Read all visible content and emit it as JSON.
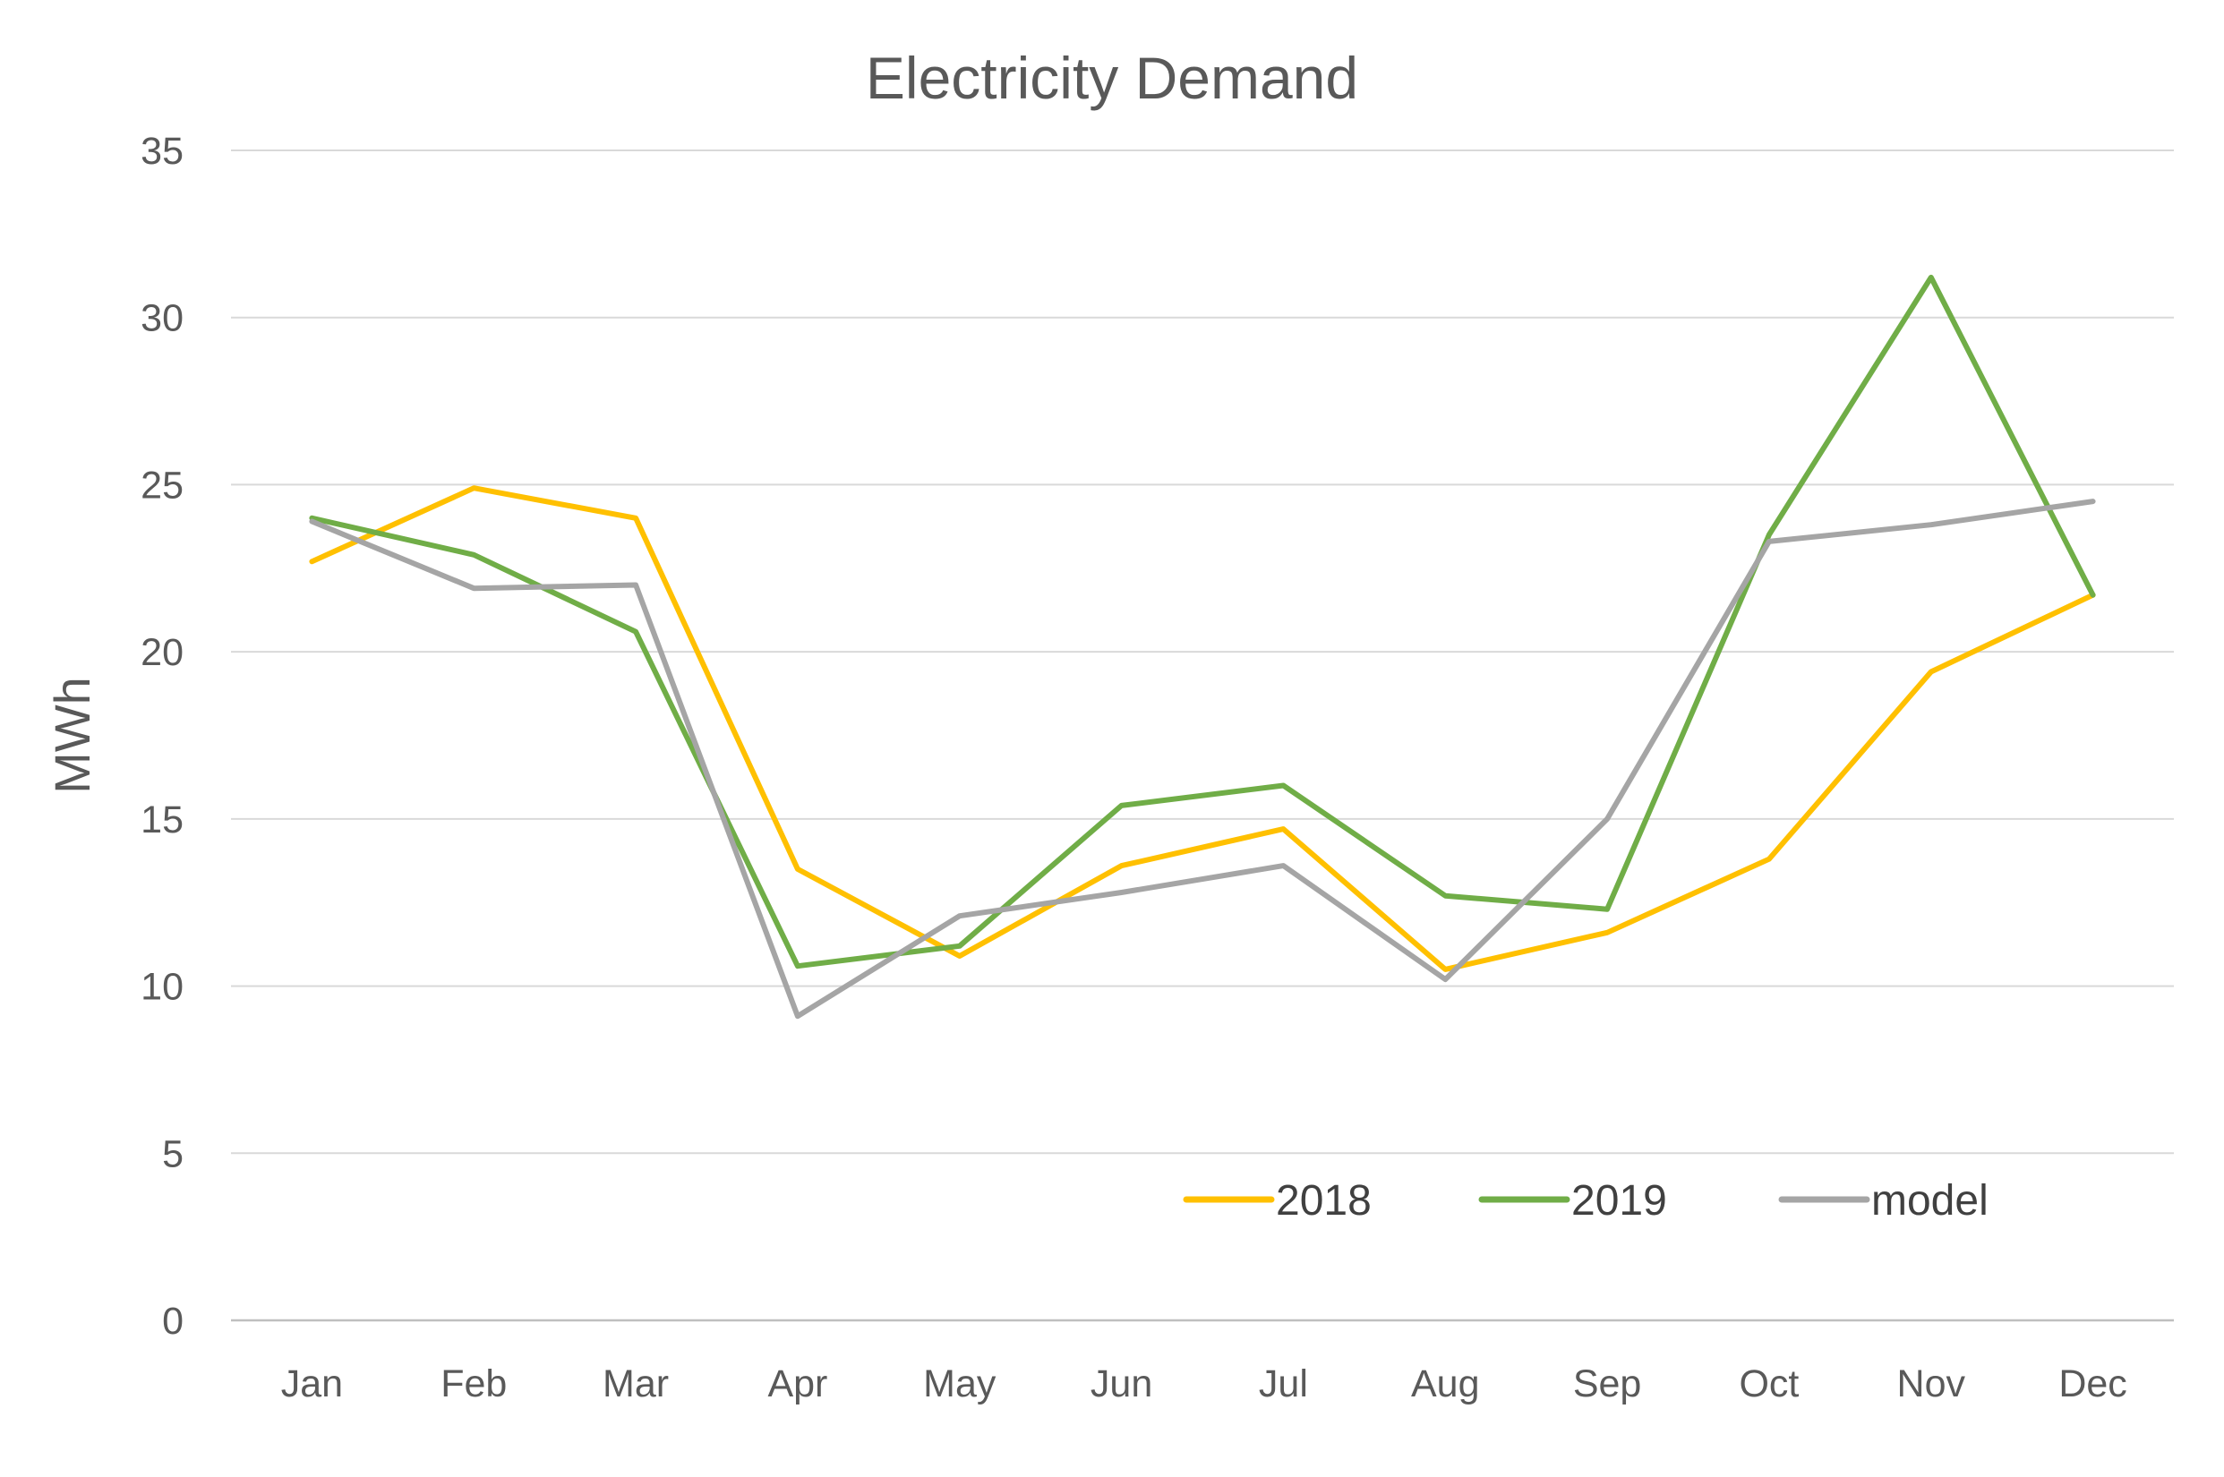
{
  "chart_data": {
    "type": "line",
    "title": "Electricity Demand",
    "xlabel": "",
    "ylabel": "MWh",
    "categories": [
      "Jan",
      "Feb",
      "Mar",
      "Apr",
      "May",
      "Jun",
      "Jul",
      "Aug",
      "Sep",
      "Oct",
      "Nov",
      "Dec"
    ],
    "ylim": [
      0,
      35
    ],
    "yticks": [
      0,
      5,
      10,
      15,
      20,
      25,
      30,
      35
    ],
    "grid": true,
    "legend_position": "bottom-right inside",
    "series": [
      {
        "name": "2018",
        "color": "#FFC000",
        "values": [
          22.7,
          24.9,
          24.0,
          13.5,
          10.9,
          13.6,
          14.7,
          10.5,
          11.6,
          13.8,
          19.4,
          21.7
        ]
      },
      {
        "name": "2019",
        "color": "#70AD47",
        "values": [
          24.0,
          22.9,
          20.6,
          10.6,
          11.2,
          15.4,
          16.0,
          12.7,
          12.3,
          23.5,
          31.2,
          21.7
        ]
      },
      {
        "name": "model",
        "color": "#A5A5A5",
        "values": [
          23.9,
          21.9,
          22.0,
          9.1,
          12.1,
          12.8,
          13.6,
          10.2,
          15.0,
          23.3,
          23.8,
          24.5
        ]
      }
    ]
  }
}
